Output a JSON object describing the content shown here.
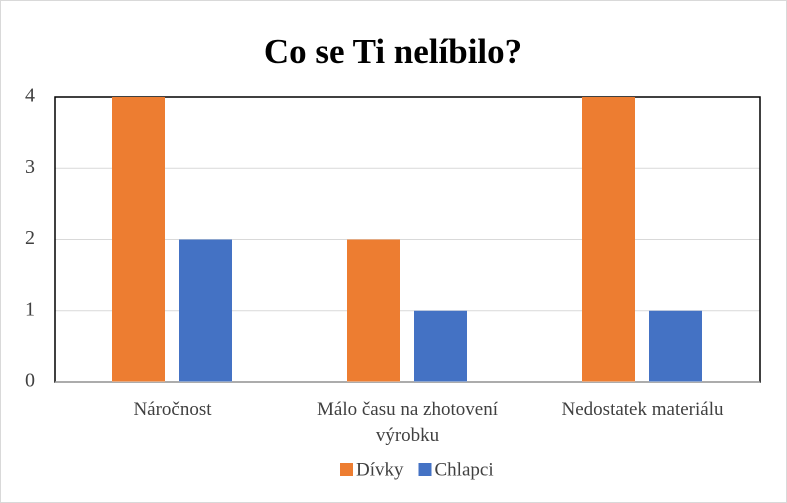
{
  "chart_data": {
    "type": "bar",
    "title": "Co se Ti nelíbilo?",
    "categories": [
      "Náročnost",
      "Málo času na zhotovení výrobku",
      "Nedostatek materiálu"
    ],
    "series": [
      {
        "name": "Dívky",
        "color": "#ed7d31",
        "values": [
          4,
          2,
          4
        ]
      },
      {
        "name": "Chlapci",
        "color": "#4472c4",
        "values": [
          2,
          1,
          1
        ]
      }
    ],
    "ylim": [
      0,
      4
    ],
    "yticks": [
      0,
      1,
      2,
      3,
      4
    ],
    "grid": true,
    "legend": "bottom"
  }
}
